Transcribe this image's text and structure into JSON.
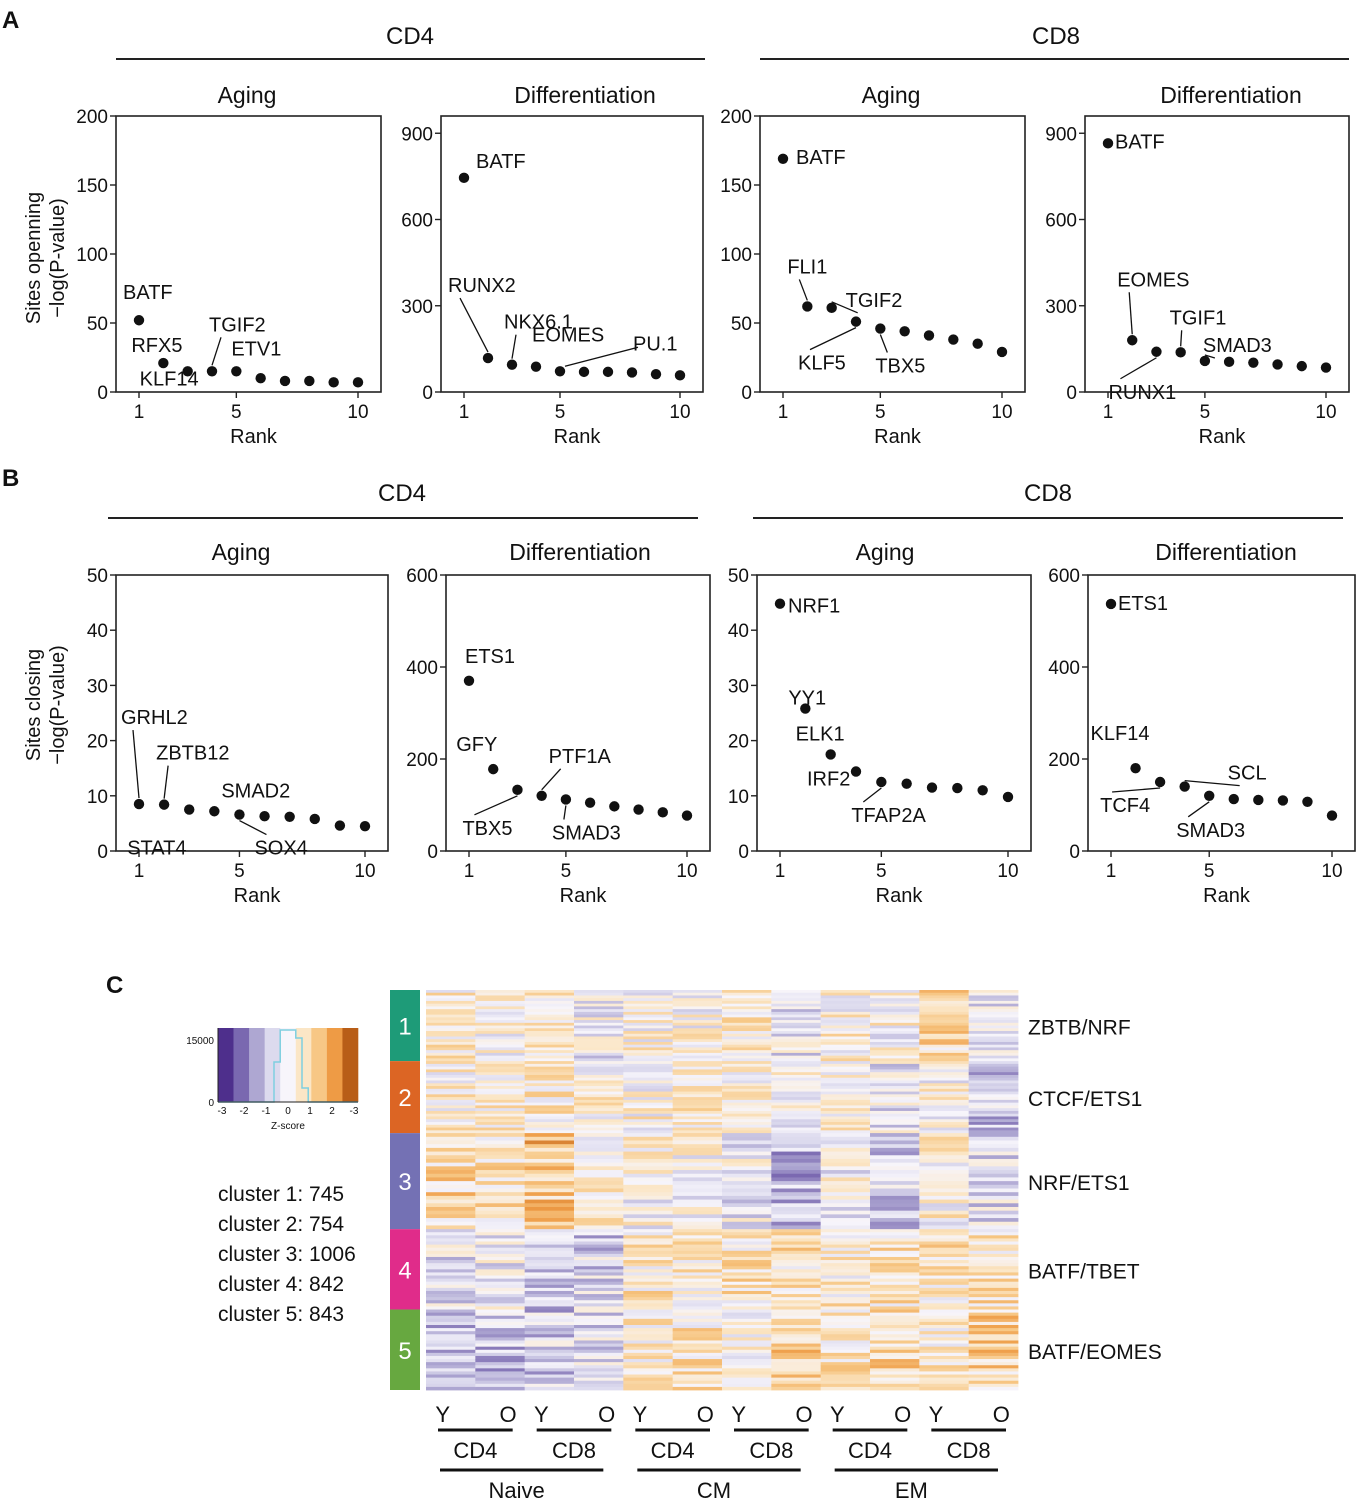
{
  "panel_labels": {
    "a": "A",
    "b": "B",
    "c": "C"
  },
  "groups": {
    "cd4": "CD4",
    "cd8": "CD8"
  },
  "sublabels": {
    "aging": "Aging",
    "differentiation": "Differentiation"
  },
  "ylabels": {
    "opening_line1": "Sites openning",
    "opening_line2": "−log(P-value)",
    "closing_line1": "Sites closing",
    "closing_line2": "−log(P-value)"
  },
  "chart_data": [
    {
      "type": "scatter",
      "title": "Aging",
      "group": "CD4",
      "panel": "A",
      "xlabel": "Rank",
      "ylabel": "Sites openning −log(P-value)",
      "xlim": [
        0.5,
        10.5
      ],
      "ylim": [
        0,
        200
      ],
      "xticks": [
        1,
        5,
        10
      ],
      "yticks": [
        0,
        50,
        100,
        150,
        200
      ],
      "x": [
        1,
        2,
        3,
        4,
        5,
        6,
        7,
        8,
        9,
        10
      ],
      "y": [
        52,
        21,
        15,
        15,
        15,
        10,
        8,
        8,
        7,
        7
      ],
      "labels": [
        {
          "rank": 1,
          "text": "BATF"
        },
        {
          "rank": 2,
          "text": "RFX5"
        },
        {
          "rank": 3,
          "text": "KLF14"
        },
        {
          "rank": 4,
          "text": "TGIF2"
        },
        {
          "rank": 5,
          "text": "ETV1"
        }
      ]
    },
    {
      "type": "scatter",
      "title": "Differentiation",
      "group": "CD4",
      "panel": "A",
      "xlabel": "Rank",
      "ylabel": "",
      "xlim": [
        0.5,
        10.5
      ],
      "ylim": [
        0,
        960
      ],
      "xticks": [
        1,
        5,
        10
      ],
      "yticks": [
        0,
        300,
        600,
        900
      ],
      "x": [
        1,
        2,
        3,
        4,
        5,
        6,
        7,
        8,
        9,
        10
      ],
      "y": [
        745,
        118,
        95,
        88,
        72,
        70,
        70,
        68,
        62,
        58
      ],
      "labels": [
        {
          "rank": 1,
          "text": "BATF"
        },
        {
          "rank": 2,
          "text": "RUNX2"
        },
        {
          "rank": 3,
          "text": "NKX6.1"
        },
        {
          "rank": 4,
          "text": "EOMES"
        },
        {
          "rank": 5,
          "text": "PU.1"
        }
      ]
    },
    {
      "type": "scatter",
      "title": "Aging",
      "group": "CD8",
      "panel": "A",
      "xlabel": "Rank",
      "ylabel": "",
      "xlim": [
        0.5,
        10.5
      ],
      "ylim": [
        0,
        200
      ],
      "xticks": [
        1,
        5,
        10
      ],
      "yticks": [
        0,
        50,
        100,
        150,
        200
      ],
      "x": [
        1,
        2,
        3,
        4,
        5,
        6,
        7,
        8,
        9,
        10
      ],
      "y": [
        169,
        62,
        61,
        51,
        46,
        44,
        41,
        38,
        35,
        29
      ],
      "labels": [
        {
          "rank": 1,
          "text": "BATF"
        },
        {
          "rank": 2,
          "text": "FLI1"
        },
        {
          "rank": 3,
          "text": "TGIF2"
        },
        {
          "rank": 4,
          "text": "KLF5"
        },
        {
          "rank": 5,
          "text": "TBX5"
        }
      ]
    },
    {
      "type": "scatter",
      "title": "Differentiation",
      "group": "CD8",
      "panel": "A",
      "xlabel": "Rank",
      "ylabel": "",
      "xlim": [
        0.5,
        10.5
      ],
      "ylim": [
        0,
        960
      ],
      "xticks": [
        1,
        5,
        10
      ],
      "yticks": [
        0,
        300,
        600,
        900
      ],
      "x": [
        1,
        2,
        3,
        4,
        5,
        6,
        7,
        8,
        9,
        10
      ],
      "y": [
        865,
        180,
        140,
        138,
        108,
        105,
        102,
        96,
        90,
        85
      ],
      "labels": [
        {
          "rank": 1,
          "text": "BATF"
        },
        {
          "rank": 2,
          "text": "EOMES"
        },
        {
          "rank": 3,
          "text": "RUNX1"
        },
        {
          "rank": 4,
          "text": "TGIF1"
        },
        {
          "rank": 5,
          "text": "SMAD3"
        }
      ]
    },
    {
      "type": "scatter",
      "title": "Aging",
      "group": "CD4",
      "panel": "B",
      "xlabel": "Rank",
      "ylabel": "Sites closing −log(P-value)",
      "xlim": [
        0.5,
        10.5
      ],
      "ylim": [
        0,
        50
      ],
      "xticks": [
        1,
        5,
        10
      ],
      "yticks": [
        0,
        10,
        20,
        30,
        40,
        50
      ],
      "x": [
        1,
        2,
        3,
        4,
        5,
        6,
        7,
        8,
        9,
        10
      ],
      "y": [
        8.5,
        8.4,
        7.5,
        7.2,
        6.6,
        6.3,
        6.2,
        5.8,
        4.6,
        4.5
      ],
      "labels": [
        {
          "rank": 1,
          "text": "GRHL2"
        },
        {
          "rank": 2,
          "text": "ZBTB12"
        },
        {
          "rank": 3,
          "text": "STAT4"
        },
        {
          "rank": 4,
          "text": "SMAD2"
        },
        {
          "rank": 5,
          "text": "SOX4"
        }
      ]
    },
    {
      "type": "scatter",
      "title": "Differentiation",
      "group": "CD4",
      "panel": "B",
      "xlabel": "Rank",
      "ylabel": "",
      "xlim": [
        0.5,
        10.5
      ],
      "ylim": [
        0,
        600
      ],
      "xticks": [
        1,
        5,
        10
      ],
      "yticks": [
        0,
        200,
        400,
        600
      ],
      "x": [
        1,
        2,
        3,
        4,
        5,
        6,
        7,
        8,
        9,
        10
      ],
      "y": [
        370,
        178,
        133,
        120,
        112,
        105,
        97,
        90,
        84,
        77
      ],
      "labels": [
        {
          "rank": 1,
          "text": "ETS1"
        },
        {
          "rank": 2,
          "text": "GFY"
        },
        {
          "rank": 3,
          "text": "TBX5"
        },
        {
          "rank": 4,
          "text": "PTF1A"
        },
        {
          "rank": 5,
          "text": "SMAD3"
        }
      ]
    },
    {
      "type": "scatter",
      "title": "Aging",
      "group": "CD8",
      "panel": "B",
      "xlabel": "Rank",
      "ylabel": "",
      "xlim": [
        0.5,
        10.5
      ],
      "ylim": [
        0,
        50
      ],
      "xticks": [
        1,
        5,
        10
      ],
      "yticks": [
        0,
        10,
        20,
        30,
        40,
        50
      ],
      "x": [
        1,
        2,
        3,
        4,
        5,
        6,
        7,
        8,
        9,
        10
      ],
      "y": [
        44.8,
        25.8,
        17.5,
        14.4,
        12.5,
        12.2,
        11.5,
        11.4,
        11.0,
        9.8
      ],
      "labels": [
        {
          "rank": 1,
          "text": "NRF1"
        },
        {
          "rank": 2,
          "text": "YY1"
        },
        {
          "rank": 3,
          "text": "ELK1"
        },
        {
          "rank": 4,
          "text": "IRF2"
        },
        {
          "rank": 5,
          "text": "TFAP2A"
        }
      ]
    },
    {
      "type": "scatter",
      "title": "Differentiation",
      "group": "CD8",
      "panel": "B",
      "xlabel": "Rank",
      "ylabel": "",
      "xlim": [
        0.5,
        10.5
      ],
      "ylim": [
        0,
        600
      ],
      "xticks": [
        1,
        5,
        10
      ],
      "yticks": [
        0,
        200,
        400,
        600
      ],
      "x": [
        1,
        2,
        3,
        4,
        5,
        6,
        7,
        8,
        9,
        10
      ],
      "y": [
        537,
        180,
        150,
        140,
        120,
        113,
        111,
        110,
        107,
        77
      ],
      "labels": [
        {
          "rank": 1,
          "text": "ETS1"
        },
        {
          "rank": 2,
          "text": "KLF14"
        },
        {
          "rank": 3,
          "text": "TCF4"
        },
        {
          "rank": 4,
          "text": "SCL"
        },
        {
          "rank": 5,
          "text": "SMAD3"
        }
      ]
    },
    {
      "type": "heatmap",
      "panel": "C",
      "clusters": [
        {
          "id": "1",
          "name": "ZBTB/NRF",
          "count": 745,
          "color": "#1e9b78"
        },
        {
          "id": "2",
          "name": "CTCF/ETS1",
          "count": 754,
          "color": "#dc6524"
        },
        {
          "id": "3",
          "name": "NRF/ETS1",
          "count": 1006,
          "color": "#7471b4"
        },
        {
          "id": "4",
          "name": "BATF/TBET",
          "count": 842,
          "color": "#e02c8a"
        },
        {
          "id": "5",
          "name": "BATF/EOMES",
          "count": 843,
          "color": "#67a840"
        }
      ],
      "count_labels": [
        "cluster 1: 745",
        "cluster 2: 754",
        "cluster 3: 1006",
        "cluster 4: 842",
        "cluster 5: 843"
      ],
      "columns": [
        "Naive CD4 Y",
        "Naive CD4 O",
        "Naive CD8 Y",
        "Naive CD8 O",
        "CM CD4 Y",
        "CM CD4 O",
        "CM CD8 Y",
        "CM CD8 O",
        "EM CD4 Y",
        "EM CD4 O",
        "EM CD8 Y",
        "EM CD8 O"
      ],
      "column_age": [
        "Y",
        "O",
        "Y",
        "O",
        "Y",
        "O",
        "Y",
        "O",
        "Y",
        "O",
        "Y",
        "O"
      ],
      "column_cell": [
        "CD4",
        "CD8",
        "CD4",
        "CD8",
        "CD4",
        "CD8"
      ],
      "column_subset": [
        "Naive",
        "CM",
        "EM"
      ],
      "mean_zscore": [
        [
          0.4,
          0.1,
          0.3,
          -0.2,
          0.2,
          0.1,
          0.3,
          -0.3,
          0.2,
          0.1,
          0.7,
          -0.4
        ],
        [
          0.3,
          0.4,
          0.4,
          0.2,
          0.2,
          0.3,
          0.3,
          0.0,
          0.2,
          -0.3,
          0.1,
          -0.8
        ],
        [
          0.8,
          0.5,
          1.2,
          0.4,
          0.1,
          0.1,
          -0.2,
          -1.0,
          0.0,
          -0.6,
          0.2,
          -0.4
        ],
        [
          -0.4,
          -0.2,
          -0.8,
          -0.6,
          0.5,
          0.4,
          0.5,
          0.6,
          0.4,
          0.5,
          0.5,
          0.6
        ],
        [
          -0.9,
          -0.8,
          -0.7,
          -0.4,
          0.3,
          0.5,
          0.3,
          1.0,
          0.5,
          0.8,
          0.5,
          0.9
        ]
      ],
      "legend": {
        "title": "Z-score",
        "ytick_max": "15000",
        "ytick_min": "0",
        "ticks": [
          "-3",
          "-2",
          "-1",
          "0",
          "1",
          "2",
          "-3"
        ],
        "colors": [
          "#4e2f8c",
          "#7a68b0",
          "#aea7d2",
          "#dcdaee",
          "#f7f5fb",
          "#fbe6c6",
          "#f7c785",
          "#ee9b45",
          "#b85d17"
        ],
        "hist_color": "#7ecfe0"
      }
    }
  ]
}
